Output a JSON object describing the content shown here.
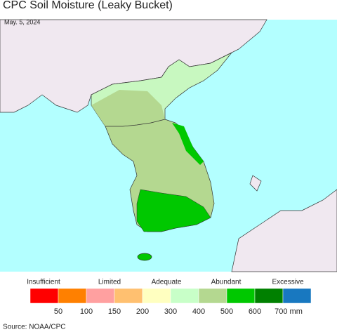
{
  "header": {
    "title": "CPC Soil Moisture (Leaky Bucket)",
    "date": "May. 5, 2024"
  },
  "legend": {
    "categories": [
      "Insufficient",
      "Limited",
      "Adequate",
      "Abundant",
      "Excessive"
    ],
    "colors": [
      "#ff0000",
      "#ff8000",
      "#ffa0a0",
      "#ffc070",
      "#ffffc0",
      "#c8ffc8",
      "#b4d890",
      "#00c800",
      "#008000",
      "#1878c0"
    ],
    "ticks": [
      "50",
      "100",
      "150",
      "200",
      "300",
      "400",
      "500",
      "600",
      "700 mm"
    ]
  },
  "footer": {
    "source": "Source: NOAA/CPC"
  }
}
